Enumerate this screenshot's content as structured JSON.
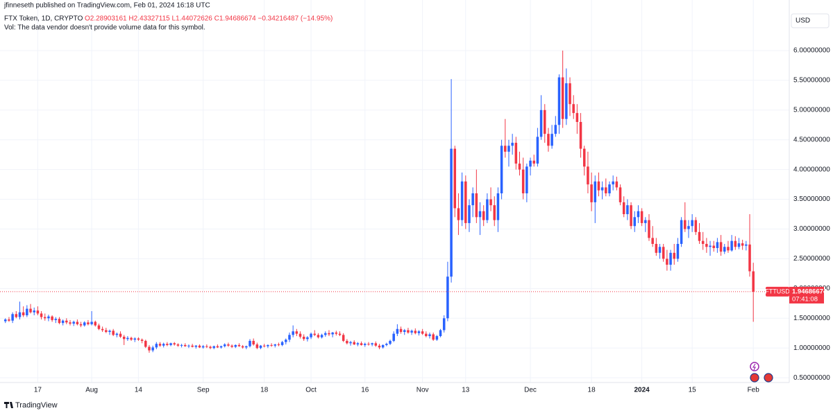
{
  "header": {
    "publisher": "jfinneseth published on TradingView.com, Feb 01, 2024 16:18 UTC",
    "symbol": "FTX Token, 1D, CRYPTO",
    "ohlc": "O2.28903161 H2.43327115 L1.44072626 C1.94686674 −0.34216487 (−14.95%)",
    "volume_note": "Vol: The data vendor doesn't provide volume data for this symbol.",
    "currency": "USD",
    "footer": "TradingView"
  },
  "chart_data": {
    "type": "candlestick",
    "ticker": "FTTUSD",
    "countdown": "07:41:08",
    "up_color": "#2962ff",
    "down_color": "#f23645",
    "xlim": [
      -1.5,
      218
    ],
    "ylim": [
      0.42,
      6.85
    ],
    "xticks": [
      {
        "value": 9,
        "label": "17"
      },
      {
        "value": 24,
        "label": "Aug"
      },
      {
        "value": 37,
        "label": "14"
      },
      {
        "value": 55,
        "label": "Sep"
      },
      {
        "value": 72,
        "label": "18"
      },
      {
        "value": 85,
        "label": "Oct"
      },
      {
        "value": 100,
        "label": "16"
      },
      {
        "value": 116,
        "label": "Nov"
      },
      {
        "value": 128,
        "label": "13"
      },
      {
        "value": 146,
        "label": "Dec"
      },
      {
        "value": 163,
        "label": "18"
      },
      {
        "value": 177,
        "label": "2024"
      },
      {
        "value": 191,
        "label": "15"
      },
      {
        "value": 208,
        "label": "Feb"
      }
    ],
    "yticks": [
      {
        "value": 0.5,
        "label": "0.50000000"
      },
      {
        "value": 1,
        "label": "1.00000000"
      },
      {
        "value": 1.5,
        "label": "1.50000000"
      },
      {
        "value": 2,
        "label": "2.00000000"
      },
      {
        "value": 2.5,
        "label": "2.50000000"
      },
      {
        "value": 3,
        "label": "3.00000000"
      },
      {
        "value": 3.5,
        "label": "3.50000000"
      },
      {
        "value": 4,
        "label": "4.00000000"
      },
      {
        "value": 4.5,
        "label": "4.50000000"
      },
      {
        "value": 5,
        "label": "5.00000000"
      },
      {
        "value": 5.5,
        "label": "5.50000000"
      },
      {
        "value": 6,
        "label": "6.00000000"
      }
    ],
    "grid": true,
    "candles": [
      [
        1.45,
        1.5,
        1.42,
        1.48
      ],
      [
        1.48,
        1.52,
        1.44,
        1.46
      ],
      [
        1.46,
        1.6,
        1.42,
        1.57
      ],
      [
        1.57,
        1.62,
        1.5,
        1.52
      ],
      [
        1.52,
        1.78,
        1.48,
        1.6
      ],
      [
        1.6,
        1.7,
        1.52,
        1.55
      ],
      [
        1.55,
        1.72,
        1.52,
        1.66
      ],
      [
        1.66,
        1.74,
        1.58,
        1.6
      ],
      [
        1.6,
        1.68,
        1.55,
        1.63
      ],
      [
        1.63,
        1.7,
        1.55,
        1.58
      ],
      [
        1.58,
        1.62,
        1.48,
        1.52
      ],
      [
        1.52,
        1.58,
        1.46,
        1.5
      ],
      [
        1.5,
        1.56,
        1.45,
        1.53
      ],
      [
        1.53,
        1.55,
        1.44,
        1.47
      ],
      [
        1.47,
        1.52,
        1.42,
        1.49
      ],
      [
        1.49,
        1.52,
        1.4,
        1.42
      ],
      [
        1.42,
        1.48,
        1.38,
        1.46
      ],
      [
        1.46,
        1.5,
        1.4,
        1.43
      ],
      [
        1.43,
        1.47,
        1.38,
        1.41
      ],
      [
        1.41,
        1.46,
        1.37,
        1.44
      ],
      [
        1.44,
        1.48,
        1.38,
        1.4
      ],
      [
        1.4,
        1.44,
        1.35,
        1.38
      ],
      [
        1.38,
        1.45,
        1.36,
        1.43
      ],
      [
        1.43,
        1.47,
        1.38,
        1.4
      ],
      [
        1.4,
        1.62,
        1.38,
        1.44
      ],
      [
        1.44,
        1.46,
        1.36,
        1.38
      ],
      [
        1.38,
        1.41,
        1.3,
        1.32
      ],
      [
        1.32,
        1.36,
        1.27,
        1.3
      ],
      [
        1.3,
        1.34,
        1.25,
        1.27
      ],
      [
        1.27,
        1.31,
        1.22,
        1.29
      ],
      [
        1.29,
        1.32,
        1.2,
        1.22
      ],
      [
        1.22,
        1.26,
        1.18,
        1.24
      ],
      [
        1.24,
        1.28,
        1.17,
        1.19
      ],
      [
        1.19,
        1.22,
        1.05,
        1.15
      ],
      [
        1.15,
        1.2,
        1.12,
        1.17
      ],
      [
        1.17,
        1.19,
        1.12,
        1.14
      ],
      [
        1.14,
        1.18,
        1.1,
        1.16
      ],
      [
        1.16,
        1.18,
        1.12,
        1.14
      ],
      [
        1.14,
        1.16,
        1.08,
        1.12
      ],
      [
        1.12,
        1.14,
        1.0,
        1.02
      ],
      [
        1.02,
        1.05,
        0.92,
        0.96
      ],
      [
        0.96,
        1.04,
        0.93,
        1.01
      ],
      [
        1.01,
        1.1,
        0.98,
        1.07
      ],
      [
        1.07,
        1.1,
        1.02,
        1.04
      ],
      [
        1.04,
        1.09,
        1.01,
        1.07
      ],
      [
        1.07,
        1.1,
        1.03,
        1.05
      ],
      [
        1.05,
        1.09,
        1.03,
        1.08
      ],
      [
        1.08,
        1.1,
        1.04,
        1.06
      ],
      [
        1.06,
        1.08,
        1.02,
        1.04
      ],
      [
        1.04,
        1.07,
        1.01,
        1.05
      ],
      [
        1.05,
        1.08,
        1.02,
        1.03
      ],
      [
        1.03,
        1.06,
        1.0,
        1.04
      ],
      [
        1.04,
        1.07,
        1.01,
        1.02
      ],
      [
        1.02,
        1.05,
        0.99,
        1.04
      ],
      [
        1.04,
        1.06,
        1.0,
        1.01
      ],
      [
        1.01,
        1.05,
        0.99,
        1.03
      ],
      [
        1.03,
        1.06,
        1.0,
        1.02
      ],
      [
        1.02,
        1.04,
        0.98,
        1.0
      ],
      [
        1.0,
        1.04,
        0.98,
        1.03
      ],
      [
        1.03,
        1.06,
        1.0,
        1.01
      ],
      [
        1.01,
        1.04,
        0.99,
        1.03
      ],
      [
        1.03,
        1.08,
        1.01,
        1.06
      ],
      [
        1.06,
        1.09,
        1.02,
        1.04
      ],
      [
        1.04,
        1.06,
        1.0,
        1.02
      ],
      [
        1.02,
        1.06,
        1.0,
        1.05
      ],
      [
        1.05,
        1.08,
        1.02,
        1.03
      ],
      [
        1.03,
        1.05,
        0.99,
        1.01
      ],
      [
        1.01,
        1.04,
        0.98,
        1.03
      ],
      [
        1.03,
        1.15,
        1.01,
        1.12
      ],
      [
        1.12,
        1.16,
        1.04,
        1.06
      ],
      [
        1.06,
        1.09,
        0.98,
        1.0
      ],
      [
        1.0,
        1.05,
        0.98,
        1.04
      ],
      [
        1.04,
        1.07,
        1.01,
        1.03
      ],
      [
        1.03,
        1.06,
        1.0,
        1.05
      ],
      [
        1.05,
        1.08,
        1.02,
        1.04
      ],
      [
        1.04,
        1.07,
        1.01,
        1.06
      ],
      [
        1.06,
        1.09,
        1.03,
        1.05
      ],
      [
        1.05,
        1.12,
        1.03,
        1.1
      ],
      [
        1.1,
        1.16,
        1.06,
        1.14
      ],
      [
        1.14,
        1.26,
        1.1,
        1.22
      ],
      [
        1.22,
        1.38,
        1.18,
        1.28
      ],
      [
        1.28,
        1.32,
        1.2,
        1.24
      ],
      [
        1.24,
        1.28,
        1.16,
        1.19
      ],
      [
        1.19,
        1.23,
        1.12,
        1.15
      ],
      [
        1.15,
        1.2,
        1.11,
        1.18
      ],
      [
        1.18,
        1.26,
        1.15,
        1.24
      ],
      [
        1.24,
        1.3,
        1.2,
        1.22
      ],
      [
        1.22,
        1.25,
        1.16,
        1.18
      ],
      [
        1.18,
        1.24,
        1.16,
        1.22
      ],
      [
        1.22,
        1.28,
        1.19,
        1.25
      ],
      [
        1.25,
        1.3,
        1.2,
        1.23
      ],
      [
        1.23,
        1.27,
        1.18,
        1.26
      ],
      [
        1.26,
        1.29,
        1.21,
        1.24
      ],
      [
        1.24,
        1.28,
        1.2,
        1.22
      ],
      [
        1.22,
        1.25,
        1.1,
        1.12
      ],
      [
        1.12,
        1.15,
        1.06,
        1.08
      ],
      [
        1.08,
        1.12,
        1.04,
        1.1
      ],
      [
        1.1,
        1.13,
        1.05,
        1.06
      ],
      [
        1.06,
        1.1,
        1.03,
        1.08
      ],
      [
        1.08,
        1.11,
        1.04,
        1.05
      ],
      [
        1.05,
        1.09,
        1.02,
        1.07
      ],
      [
        1.07,
        1.1,
        1.04,
        1.06
      ],
      [
        1.06,
        1.09,
        1.03,
        1.08
      ],
      [
        1.08,
        1.11,
        1.02,
        1.04
      ],
      [
        1.04,
        1.07,
        0.98,
        1.01
      ],
      [
        1.01,
        1.06,
        0.99,
        1.05
      ],
      [
        1.05,
        1.09,
        1.03,
        1.07
      ],
      [
        1.07,
        1.14,
        1.05,
        1.12
      ],
      [
        1.12,
        1.28,
        1.1,
        1.24
      ],
      [
        1.24,
        1.4,
        1.2,
        1.32
      ],
      [
        1.32,
        1.36,
        1.24,
        1.27
      ],
      [
        1.27,
        1.32,
        1.22,
        1.3
      ],
      [
        1.3,
        1.34,
        1.24,
        1.26
      ],
      [
        1.26,
        1.31,
        1.22,
        1.29
      ],
      [
        1.29,
        1.33,
        1.23,
        1.25
      ],
      [
        1.25,
        1.3,
        1.21,
        1.28
      ],
      [
        1.28,
        1.32,
        1.22,
        1.24
      ],
      [
        1.24,
        1.28,
        1.18,
        1.2
      ],
      [
        1.2,
        1.26,
        1.16,
        1.23
      ],
      [
        1.23,
        1.26,
        1.12,
        1.14
      ],
      [
        1.14,
        1.22,
        1.12,
        1.2
      ],
      [
        1.2,
        1.32,
        1.18,
        1.3
      ],
      [
        1.3,
        1.55,
        1.26,
        1.5
      ],
      [
        1.5,
        2.45,
        1.45,
        2.2
      ],
      [
        2.2,
        5.52,
        2.1,
        4.35
      ],
      [
        4.35,
        4.4,
        3.2,
        3.35
      ],
      [
        3.35,
        3.6,
        2.9,
        3.15
      ],
      [
        3.15,
        3.95,
        3.05,
        3.8
      ],
      [
        3.8,
        3.9,
        3.0,
        3.1
      ],
      [
        3.1,
        3.5,
        2.95,
        3.4
      ],
      [
        3.4,
        3.7,
        3.2,
        3.6
      ],
      [
        3.6,
        4.0,
        3.1,
        3.2
      ],
      [
        3.2,
        3.45,
        2.9,
        3.3
      ],
      [
        3.3,
        3.4,
        3.05,
        3.15
      ],
      [
        3.15,
        3.6,
        3.1,
        3.5
      ],
      [
        3.5,
        3.7,
        3.3,
        3.4
      ],
      [
        3.4,
        3.55,
        3.05,
        3.15
      ],
      [
        3.15,
        3.7,
        2.95,
        3.6
      ],
      [
        3.6,
        4.5,
        3.5,
        4.4
      ],
      [
        4.4,
        4.85,
        4.2,
        4.3
      ],
      [
        4.3,
        4.5,
        4.05,
        4.4
      ],
      [
        4.4,
        4.6,
        4.25,
        4.45
      ],
      [
        4.45,
        4.55,
        4.0,
        4.1
      ],
      [
        4.1,
        4.3,
        3.9,
        4.0
      ],
      [
        4.0,
        4.2,
        3.5,
        3.6
      ],
      [
        3.6,
        4.1,
        3.45,
        4.05
      ],
      [
        4.05,
        4.2,
        3.9,
        4.15
      ],
      [
        4.15,
        4.25,
        4.05,
        4.1
      ],
      [
        4.1,
        4.7,
        4.05,
        4.55
      ],
      [
        4.55,
        5.25,
        4.5,
        5.0
      ],
      [
        5.0,
        5.1,
        4.45,
        4.6
      ],
      [
        4.6,
        4.7,
        4.3,
        4.4
      ],
      [
        4.4,
        4.75,
        4.35,
        4.6
      ],
      [
        4.6,
        4.9,
        4.55,
        4.75
      ],
      [
        4.75,
        5.6,
        4.6,
        5.55
      ],
      [
        5.55,
        6.0,
        4.7,
        4.85
      ],
      [
        4.85,
        5.7,
        4.75,
        5.45
      ],
      [
        5.45,
        5.55,
        4.9,
        5.1
      ],
      [
        5.1,
        5.25,
        4.85,
        4.95
      ],
      [
        4.95,
        5.1,
        4.6,
        4.8
      ],
      [
        4.8,
        4.95,
        4.2,
        4.35
      ],
      [
        4.35,
        4.4,
        3.9,
        4.05
      ],
      [
        4.05,
        4.3,
        3.6,
        3.75
      ],
      [
        3.75,
        3.95,
        3.3,
        3.45
      ],
      [
        3.45,
        3.9,
        3.1,
        3.8
      ],
      [
        3.8,
        3.95,
        3.55,
        3.65
      ],
      [
        3.65,
        3.8,
        3.5,
        3.7
      ],
      [
        3.7,
        3.85,
        3.55,
        3.6
      ],
      [
        3.6,
        3.8,
        3.55,
        3.75
      ],
      [
        3.75,
        3.9,
        3.65,
        3.8
      ],
      [
        3.8,
        3.88,
        3.65,
        3.7
      ],
      [
        3.7,
        3.75,
        3.4,
        3.45
      ],
      [
        3.45,
        3.55,
        3.2,
        3.25
      ],
      [
        3.25,
        3.5,
        3.15,
        3.4
      ],
      [
        3.4,
        3.45,
        3.0,
        3.05
      ],
      [
        3.05,
        3.3,
        2.95,
        3.2
      ],
      [
        3.2,
        3.4,
        3.1,
        3.3
      ],
      [
        3.3,
        3.35,
        3.05,
        3.1
      ],
      [
        3.1,
        3.2,
        2.95,
        3.15
      ],
      [
        3.15,
        3.25,
        2.8,
        2.85
      ],
      [
        2.85,
        3.05,
        2.7,
        2.75
      ],
      [
        2.75,
        2.85,
        2.55,
        2.6
      ],
      [
        2.6,
        2.75,
        2.5,
        2.7
      ],
      [
        2.7,
        2.75,
        2.45,
        2.5
      ],
      [
        2.5,
        2.65,
        2.3,
        2.4
      ],
      [
        2.4,
        2.65,
        2.3,
        2.6
      ],
      [
        2.6,
        2.75,
        2.4,
        2.5
      ],
      [
        2.5,
        2.85,
        2.45,
        2.75
      ],
      [
        2.75,
        3.2,
        2.7,
        3.15
      ],
      [
        3.15,
        3.45,
        2.95,
        3.0
      ],
      [
        3.0,
        3.15,
        2.85,
        3.05
      ],
      [
        3.05,
        3.25,
        2.95,
        3.15
      ],
      [
        3.15,
        3.2,
        2.9,
        2.95
      ],
      [
        2.95,
        3.1,
        2.75,
        2.8
      ],
      [
        2.8,
        2.95,
        2.65,
        2.75
      ],
      [
        2.75,
        2.85,
        2.6,
        2.7
      ],
      [
        2.7,
        2.8,
        2.55,
        2.72
      ],
      [
        2.72,
        2.8,
        2.62,
        2.68
      ],
      [
        2.68,
        2.85,
        2.6,
        2.78
      ],
      [
        2.78,
        2.9,
        2.55,
        2.62
      ],
      [
        2.62,
        2.75,
        2.58,
        2.7
      ],
      [
        2.7,
        2.8,
        2.6,
        2.64
      ],
      [
        2.64,
        2.9,
        2.62,
        2.8
      ],
      [
        2.8,
        2.88,
        2.65,
        2.7
      ],
      [
        2.7,
        2.85,
        2.66,
        2.76
      ],
      [
        2.76,
        2.82,
        2.65,
        2.72
      ],
      [
        2.72,
        2.8,
        2.64,
        2.74
      ],
      [
        2.74,
        3.25,
        2.2,
        2.29
      ],
      [
        2.28903161,
        2.43327115,
        1.44072626,
        1.94686674
      ]
    ]
  }
}
